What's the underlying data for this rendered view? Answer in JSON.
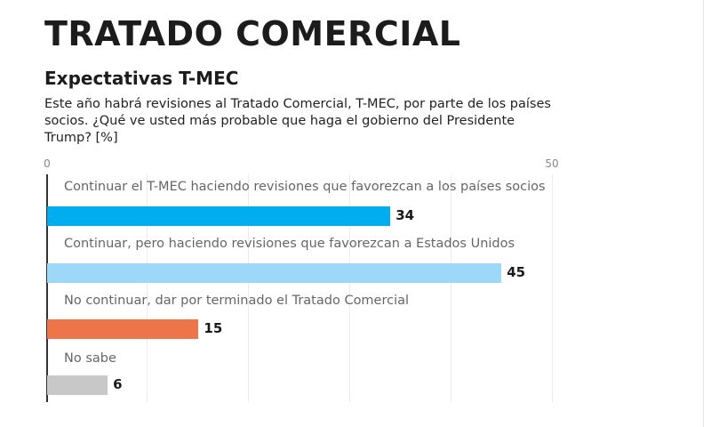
{
  "header": {
    "title": "TRATADO COMERCIAL",
    "subtitle": "Expectativas T-MEC",
    "question": "Este año habrá revisiones al Tratado Comercial, T-MEC, por parte de los países socios. ¿Qué ve usted más probable que haga el gobierno del Presidente Trump?  [%]"
  },
  "axis": {
    "tick_min_label": "0",
    "tick_max_label": "50"
  },
  "colors": {
    "bar_1": "#00AEEF",
    "bar_2": "#9DD8F8",
    "bar_3": "#EE7449",
    "bar_4": "#C8C8C8"
  },
  "chart_data": {
    "type": "bar",
    "orientation": "horizontal",
    "title": "TRATADO COMERCIAL",
    "subtitle": "Expectativas T-MEC",
    "question": "Este año habrá revisiones al Tratado Comercial, T-MEC, por parte de los países socios. ¿Qué ve usted más probable que haga el gobierno del Presidente Trump?  [%]",
    "categories": [
      "Continuar el T-MEC haciendo revisiones que favorezcan a los países socios",
      "Continuar, pero haciendo revisiones que favorezcan a Estados Unidos",
      "No continuar, dar por terminado el Tratado Comercial",
      "No sabe"
    ],
    "values": [
      34,
      45,
      15,
      6
    ],
    "value_labels": [
      "34",
      "45",
      "15",
      "6"
    ],
    "colors": [
      "#00AEEF",
      "#9DD8F8",
      "#EE7449",
      "#C8C8C8"
    ],
    "xlabel": "",
    "ylabel": "",
    "xlim": [
      0,
      50
    ],
    "tick_labels": [
      "0",
      "50"
    ],
    "grid": true,
    "gridline_interval": 10,
    "unit": "%",
    "legend": null
  }
}
